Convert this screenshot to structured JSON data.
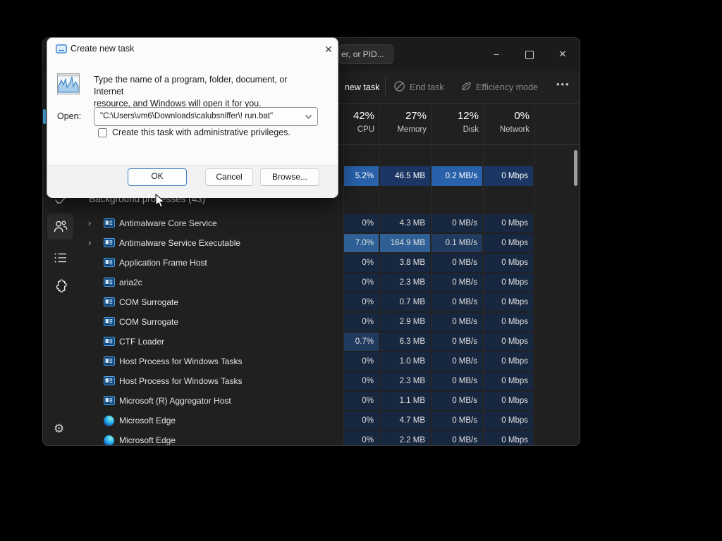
{
  "dialog": {
    "title": "Create new task",
    "close_icon": "✕",
    "description_line1": "Type the name of a program, folder, document, or Internet",
    "description_line2": "resource, and Windows will open it for you.",
    "open_label": "Open:",
    "open_value": "\"C:\\Users\\vm6\\Downloads\\calubsniffer\\! run.bat\"",
    "checkbox_checked": false,
    "checkbox_label": "Create this task with administrative privileges.",
    "buttons": {
      "ok": "OK",
      "cancel": "Cancel",
      "browse": "Browse..."
    }
  },
  "taskmanager": {
    "search_visible_text": "er, or PID...",
    "window_controls": {
      "minimize": "–",
      "maximize": "▢",
      "close": "✕"
    },
    "toolbar": {
      "run_new_task_visible": "new task",
      "end_task": "End task",
      "efficiency_mode": "Efficiency mode",
      "more": "•••"
    },
    "header_columns": [
      {
        "percent": "42%",
        "label": "CPU"
      },
      {
        "percent": "27%",
        "label": "Memory"
      },
      {
        "percent": "12%",
        "label": "Disk"
      },
      {
        "percent": "0%",
        "label": "Network"
      }
    ],
    "selected_row": {
      "cpu": "5.2%",
      "memory": "46.5 MB",
      "disk": "0.2 MB/s",
      "network": "0 Mbps"
    },
    "group_header": "Background processes (43)",
    "processes": [
      {
        "name": "Antimalware Core Service",
        "expandable": true,
        "icon": "app",
        "cpu": "0%",
        "memory": "4.3 MB",
        "disk": "0 MB/s",
        "network": "0 Mbps",
        "levels": {}
      },
      {
        "name": "Antimalware Service Executable",
        "expandable": true,
        "icon": "app",
        "cpu": "7.0%",
        "memory": "164.9 MB",
        "disk": "0.1 MB/s",
        "network": "0 Mbps",
        "levels": {
          "cpu": "hot",
          "memory": "hot",
          "disk": "warm"
        }
      },
      {
        "name": "Application Frame Host",
        "expandable": false,
        "icon": "app",
        "cpu": "0%",
        "memory": "3.8 MB",
        "disk": "0 MB/s",
        "network": "0 Mbps",
        "levels": {}
      },
      {
        "name": "aria2c",
        "expandable": false,
        "icon": "app",
        "cpu": "0%",
        "memory": "2.3 MB",
        "disk": "0 MB/s",
        "network": "0 Mbps",
        "levels": {}
      },
      {
        "name": "COM Surrogate",
        "expandable": false,
        "icon": "app",
        "cpu": "0%",
        "memory": "0.7 MB",
        "disk": "0 MB/s",
        "network": "0 Mbps",
        "levels": {}
      },
      {
        "name": "COM Surrogate",
        "expandable": false,
        "icon": "app",
        "cpu": "0%",
        "memory": "2.9 MB",
        "disk": "0 MB/s",
        "network": "0 Mbps",
        "levels": {}
      },
      {
        "name": "CTF Loader",
        "expandable": false,
        "icon": "app",
        "cpu": "0.7%",
        "memory": "6.3 MB",
        "disk": "0 MB/s",
        "network": "0 Mbps",
        "levels": {
          "cpu": "warm"
        }
      },
      {
        "name": "Host Process for Windows Tasks",
        "expandable": false,
        "icon": "app",
        "cpu": "0%",
        "memory": "1.0 MB",
        "disk": "0 MB/s",
        "network": "0 Mbps",
        "levels": {}
      },
      {
        "name": "Host Process for Windows Tasks",
        "expandable": false,
        "icon": "app",
        "cpu": "0%",
        "memory": "2.3 MB",
        "disk": "0 MB/s",
        "network": "0 Mbps",
        "levels": {}
      },
      {
        "name": "Microsoft (R) Aggregator Host",
        "expandable": false,
        "icon": "app",
        "cpu": "0%",
        "memory": "1.1 MB",
        "disk": "0 MB/s",
        "network": "0 Mbps",
        "levels": {}
      },
      {
        "name": "Microsoft Edge",
        "expandable": false,
        "icon": "edge",
        "cpu": "0%",
        "memory": "4.7 MB",
        "disk": "0 MB/s",
        "network": "0 Mbps",
        "levels": {}
      },
      {
        "name": "Microsoft Edge",
        "expandable": false,
        "icon": "edge",
        "cpu": "0%",
        "memory": "2.2 MB",
        "disk": "0 MB/s",
        "network": "0 Mbps",
        "levels": {}
      }
    ],
    "sidebar_icons": [
      "startup-apps-icon-partial",
      "users-icon",
      "details-icon",
      "services-icon",
      "settings-gear-icon"
    ]
  },
  "colors": {
    "accent_pill": "#4cc2ff",
    "heat_normal": "#17273f",
    "heat_warm": "#203a60",
    "heat_hot": "#2e6096",
    "selected_dim": "#1b3662",
    "selected_bright": "#2961ab",
    "window_bg": "#202020",
    "dialog_bg": "#fbfbfb"
  }
}
